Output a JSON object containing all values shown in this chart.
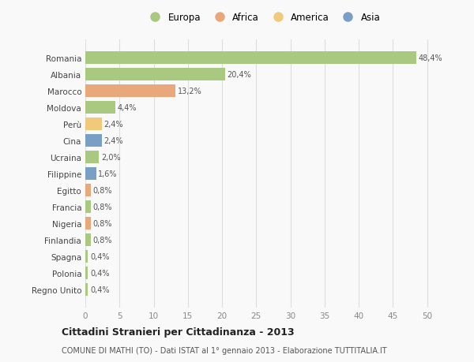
{
  "countries": [
    "Romania",
    "Albania",
    "Marocco",
    "Moldova",
    "Perù",
    "Cina",
    "Ucraina",
    "Filippine",
    "Egitto",
    "Francia",
    "Nigeria",
    "Finlandia",
    "Spagna",
    "Polonia",
    "Regno Unito"
  ],
  "values": [
    48.4,
    20.4,
    13.2,
    4.4,
    2.4,
    2.4,
    2.0,
    1.6,
    0.8,
    0.8,
    0.8,
    0.8,
    0.4,
    0.4,
    0.4
  ],
  "labels": [
    "48,4%",
    "20,4%",
    "13,2%",
    "4,4%",
    "2,4%",
    "2,4%",
    "2,0%",
    "1,6%",
    "0,8%",
    "0,8%",
    "0,8%",
    "0,8%",
    "0,4%",
    "0,4%",
    "0,4%"
  ],
  "continents": [
    "Europa",
    "Europa",
    "Africa",
    "Europa",
    "America",
    "Asia",
    "Europa",
    "Asia",
    "Africa",
    "Europa",
    "Africa",
    "Europa",
    "Europa",
    "Europa",
    "Europa"
  ],
  "continent_colors": {
    "Europa": "#a8c97f",
    "Africa": "#e8a87c",
    "America": "#f0c97a",
    "Asia": "#7a9fc4"
  },
  "legend_order": [
    "Europa",
    "Africa",
    "America",
    "Asia"
  ],
  "title": "Cittadini Stranieri per Cittadinanza - 2013",
  "subtitle": "COMUNE DI MATHI (TO) - Dati ISTAT al 1° gennaio 2013 - Elaborazione TUTTITALIA.IT",
  "xlim": [
    0,
    52
  ],
  "xticks": [
    0,
    5,
    10,
    15,
    20,
    25,
    30,
    35,
    40,
    45,
    50
  ],
  "background_color": "#f9f9f9",
  "grid_color": "#dddddd",
  "bar_height": 0.75
}
